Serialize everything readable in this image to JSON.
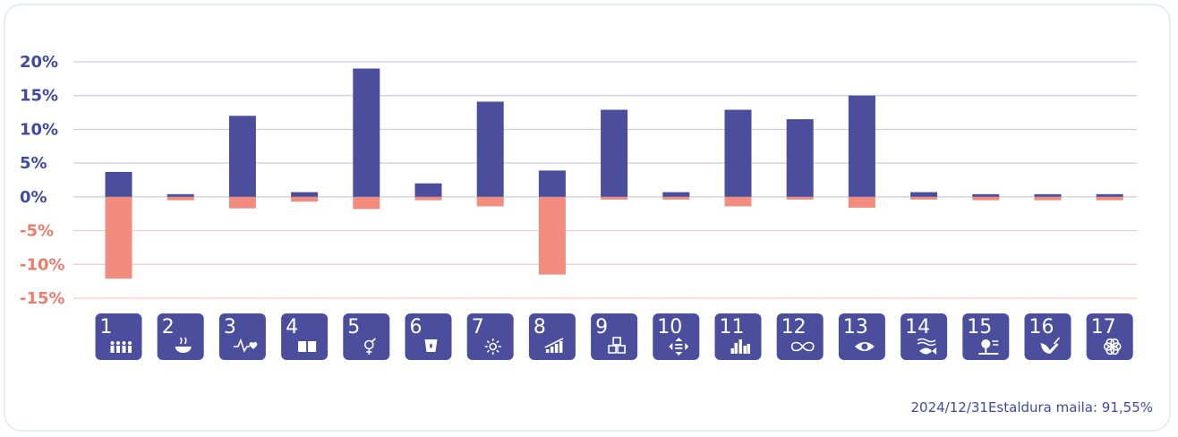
{
  "chart_data": {
    "type": "bar",
    "categories": [
      "1",
      "2",
      "3",
      "4",
      "5",
      "6",
      "7",
      "8",
      "9",
      "10",
      "11",
      "12",
      "13",
      "14",
      "15",
      "16",
      "17"
    ],
    "series": [
      {
        "values": [
          3.7,
          0.4,
          12.0,
          0.7,
          19.0,
          2.0,
          14.1,
          3.9,
          12.9,
          0.7,
          12.9,
          11.5,
          15.0,
          0.7,
          0.4,
          0.4,
          0.4
        ]
      },
      {
        "values": [
          -12.1,
          -0.5,
          -1.7,
          -0.7,
          -1.8,
          -0.5,
          -1.4,
          -11.5,
          -0.4,
          -0.4,
          -1.4,
          -0.4,
          -1.6,
          -0.4,
          -0.5,
          -0.5,
          -0.5
        ]
      }
    ],
    "ylim": [
      -15,
      20
    ],
    "yticks": [
      20,
      15,
      10,
      5,
      0,
      -5,
      -10,
      -15
    ],
    "ytick_labels": [
      "20%",
      "15%",
      "10%",
      "5%",
      "0%",
      "-5%",
      "-10%",
      "-15%"
    ],
    "xlabel": "",
    "ylabel": "",
    "grid": true,
    "colors": {
      "positive": "#4a4e9c",
      "negative": "#f18c7e",
      "grid_positive": "#c9cce6",
      "grid_negative": "#f7c9c1",
      "axis_label": "#3f4aa0",
      "axis_label_negative": "#ef7b6b",
      "icon_bg": "#4a4e9c"
    },
    "icons": [
      "family-icon",
      "bowl-icon",
      "heartbeat-icon",
      "book-icon",
      "gender-icon",
      "water-drop-icon",
      "sun-icon",
      "growth-chart-icon",
      "cubes-icon",
      "arrows-icon",
      "city-icon",
      "infinity-icon",
      "eye-icon",
      "fish-icon",
      "tree-icon",
      "dove-icon",
      "flower-icon"
    ]
  },
  "footer": {
    "text": "2024/12/31Estaldura maila: 91,55%"
  }
}
